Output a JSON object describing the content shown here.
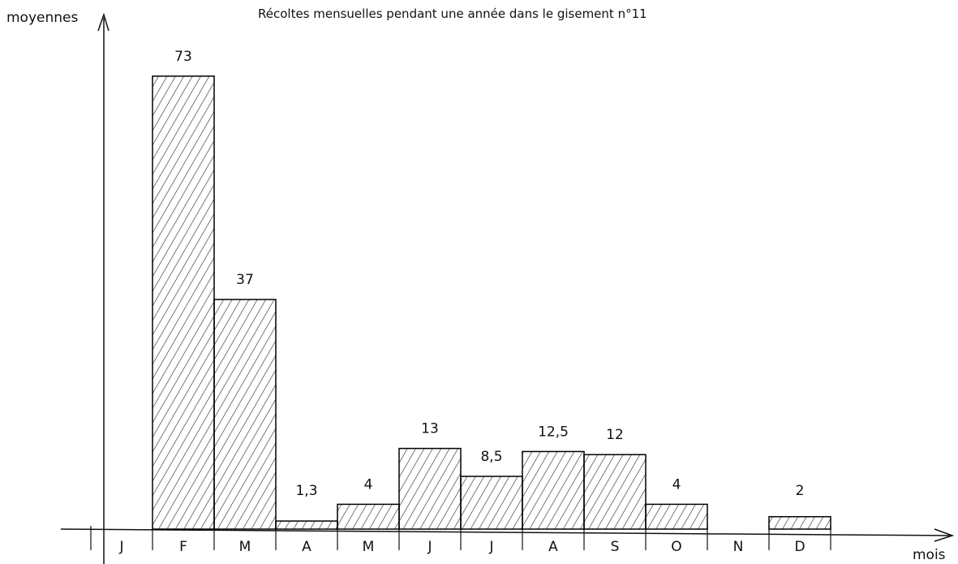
{
  "chart_data": {
    "type": "bar",
    "title": "Récoltes mensuelles pendant une année dans le gisement n°11",
    "y_label": "moyennes",
    "x_label": "mois",
    "categories": [
      "J",
      "F",
      "M",
      "A",
      "M",
      "J",
      "J",
      "A",
      "S",
      "O",
      "N",
      "D"
    ],
    "values": [
      null,
      73,
      37,
      1.3,
      4,
      13,
      8.5,
      12.5,
      12,
      4,
      null,
      2
    ],
    "value_labels": [
      null,
      "73",
      "37",
      "1,3",
      "4",
      "13",
      "8,5",
      "12,5",
      "12",
      "4",
      null,
      "2"
    ],
    "color": "#000000",
    "ylim": [
      0,
      82
    ]
  }
}
